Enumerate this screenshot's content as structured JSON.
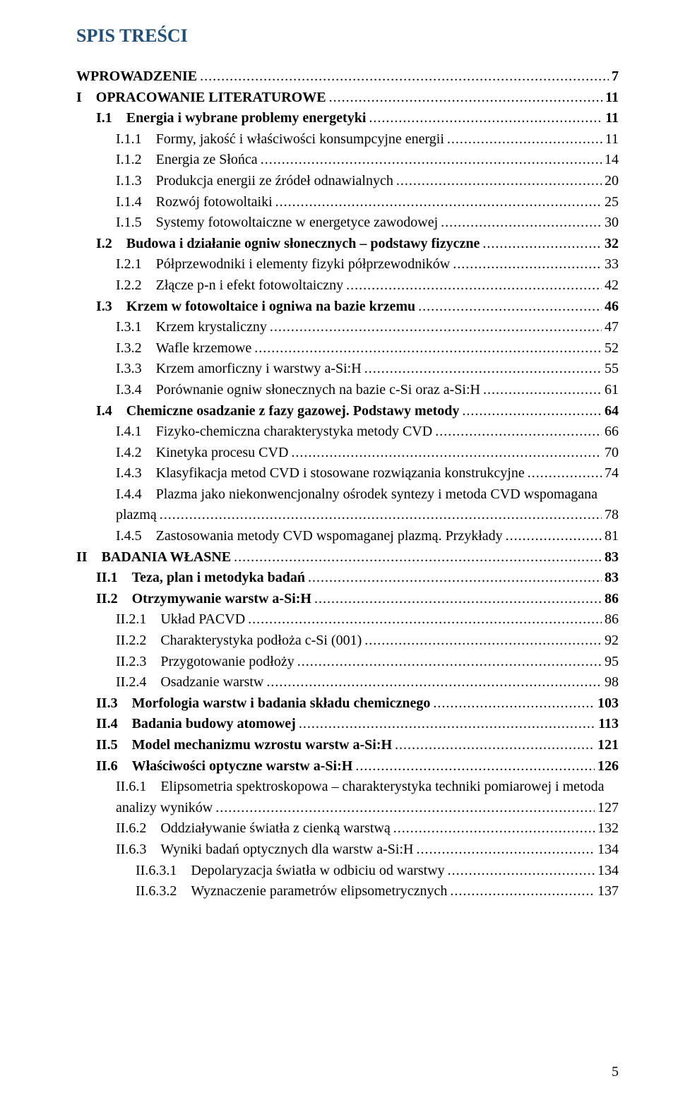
{
  "colors": {
    "title": "#1f4e79",
    "text": "#000000",
    "background": "#ffffff"
  },
  "typography": {
    "font_family": "Times New Roman",
    "title_size_pt": 20,
    "body_size_pt": 15
  },
  "title": "SPIS TREŚCI",
  "page_number": "5",
  "entries": [
    {
      "level": "top",
      "bold": true,
      "label": "WPROWADZENIE",
      "page": "7"
    },
    {
      "level": "roman",
      "bold": true,
      "label": "I OPRACOWANIE LITERATUROWE",
      "page": "11"
    },
    {
      "level": "sec",
      "bold": true,
      "label": "I.1 Energia i wybrane problemy energetyki",
      "page": "11"
    },
    {
      "level": "sub",
      "bold": false,
      "label": "I.1.1 Formy, jakość i właściwości konsumpcyjne energii",
      "page": "11"
    },
    {
      "level": "sub",
      "bold": false,
      "label": "I.1.2 Energia ze Słońca",
      "page": "14"
    },
    {
      "level": "sub",
      "bold": false,
      "label": "I.1.3 Produkcja energii ze źródeł odnawialnych",
      "page": "20"
    },
    {
      "level": "sub",
      "bold": false,
      "label": "I.1.4 Rozwój fotowoltaiki",
      "page": "25"
    },
    {
      "level": "sub",
      "bold": false,
      "label": "I.1.5 Systemy fotowoltaiczne w energetyce zawodowej",
      "page": "30"
    },
    {
      "level": "sec",
      "bold": true,
      "label": "I.2 Budowa i działanie ogniw słonecznych – podstawy fizyczne",
      "page": "32"
    },
    {
      "level": "sub",
      "bold": false,
      "label": "I.2.1 Półprzewodniki i elementy fizyki półprzewodników",
      "page": "33"
    },
    {
      "level": "sub",
      "bold": false,
      "label": "I.2.2 Złącze p-n i efekt fotowoltaiczny",
      "page": "42"
    },
    {
      "level": "sec",
      "bold": true,
      "label": "I.3 Krzem w fotowoltaice i ogniwa na bazie krzemu",
      "page": "46"
    },
    {
      "level": "sub",
      "bold": false,
      "label": "I.3.1 Krzem krystaliczny",
      "page": "47"
    },
    {
      "level": "sub",
      "bold": false,
      "label": "I.3.2 Wafle krzemowe",
      "page": "52"
    },
    {
      "level": "sub",
      "bold": false,
      "label": "I.3.3 Krzem amorficzny i warstwy a-Si:H",
      "page": "55"
    },
    {
      "level": "sub",
      "bold": false,
      "label": "I.3.4 Porównanie ogniw słonecznych na bazie c-Si oraz a-Si:H",
      "page": "61"
    },
    {
      "level": "sec",
      "bold": true,
      "label": "I.4 Chemiczne osadzanie z fazy gazowej. Podstawy metody",
      "page": "64"
    },
    {
      "level": "sub",
      "bold": false,
      "label": "I.4.1 Fizyko-chemiczna charakterystyka metody CVD",
      "page": "66"
    },
    {
      "level": "sub",
      "bold": false,
      "label": "I.4.2 Kinetyka procesu CVD",
      "page": "70"
    },
    {
      "level": "sub",
      "bold": false,
      "label": "I.4.3 Klasyfikacja metod CVD i stosowane rozwiązania konstrukcyjne",
      "page": "74"
    },
    {
      "level": "sub",
      "bold": false,
      "label": "I.4.4 Plazma jako niekonwencjonalny ośrodek syntezy i metoda CVD wspomagana",
      "page": ""
    },
    {
      "level": "sub",
      "bold": false,
      "label": "plazmą",
      "page": "78"
    },
    {
      "level": "sub",
      "bold": false,
      "label": "I.4.5 Zastosowania metody CVD wspomaganej plazmą. Przykłady",
      "page": "81"
    },
    {
      "level": "roman",
      "bold": true,
      "label": "II BADANIA WŁASNE",
      "page": "83"
    },
    {
      "level": "sec",
      "bold": true,
      "label": "II.1 Teza, plan i metodyka badań",
      "page": "83"
    },
    {
      "level": "sec",
      "bold": true,
      "label": "II.2 Otrzymywanie warstw a-Si:H",
      "page": "86"
    },
    {
      "level": "sub",
      "bold": false,
      "label": "II.2.1 Układ PACVD",
      "page": "86"
    },
    {
      "level": "sub",
      "bold": false,
      "label": "II.2.2 Charakterystyka podłoża c-Si (001)",
      "page": "92"
    },
    {
      "level": "sub",
      "bold": false,
      "label": "II.2.3 Przygotowanie podłoży",
      "page": "95"
    },
    {
      "level": "sub",
      "bold": false,
      "label": "II.2.4 Osadzanie warstw",
      "page": "98"
    },
    {
      "level": "sec",
      "bold": true,
      "label": "II.3 Morfologia warstw i badania składu chemicznego",
      "page": "103"
    },
    {
      "level": "sec",
      "bold": true,
      "label": "II.4 Badania budowy atomowej",
      "page": "113"
    },
    {
      "level": "sec",
      "bold": true,
      "label": "II.5 Model mechanizmu wzrostu warstw a-Si:H",
      "page": "121"
    },
    {
      "level": "sec",
      "bold": true,
      "label": "II.6 Właściwości optyczne warstw a-Si:H",
      "page": "126"
    },
    {
      "level": "sub",
      "bold": false,
      "label": "II.6.1 Elipsometria spektroskopowa – charakterystyka techniki pomiarowej i metoda",
      "page": ""
    },
    {
      "level": "sub",
      "bold": false,
      "label": "analizy wyników",
      "page": "127"
    },
    {
      "level": "sub",
      "bold": false,
      "label": "II.6.2 Oddziaływanie światła z cienką warstwą",
      "page": "132"
    },
    {
      "level": "sub",
      "bold": false,
      "label": "II.6.3 Wyniki badań optycznych dla warstw a-Si:H",
      "page": "134"
    },
    {
      "level": "subsub",
      "bold": false,
      "label": "II.6.3.1 Depolaryzacja światła w odbiciu od warstwy",
      "page": "134"
    },
    {
      "level": "subsub",
      "bold": false,
      "label": "II.6.3.2 Wyznaczenie parametrów elipsometrycznych",
      "page": "137"
    }
  ]
}
